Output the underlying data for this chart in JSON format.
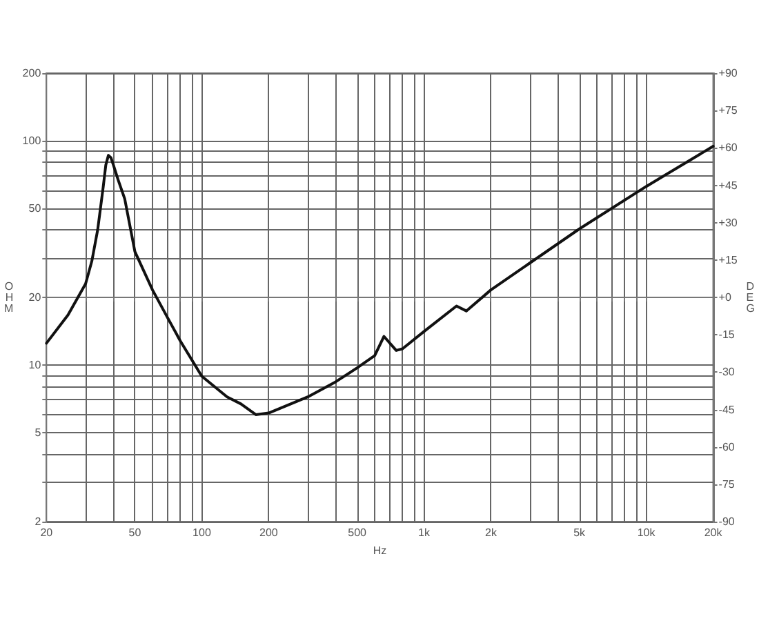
{
  "chart_data": {
    "type": "line",
    "xlabel": "Hz",
    "ylabel": "OHM",
    "y2label": "DEG",
    "log": "xy",
    "grid": true,
    "marker": "none",
    "line_style": "solid",
    "x": [
      20,
      25,
      30,
      32,
      34,
      36,
      37,
      38,
      39,
      40,
      42,
      45,
      50,
      60,
      70,
      80,
      100,
      130,
      150,
      175,
      200,
      300,
      400,
      500,
      600,
      660,
      750,
      800,
      1000,
      1400,
      1550,
      2000,
      5000,
      10000,
      20000
    ],
    "series": [
      {
        "color": "#111111",
        "values": [
          12.5,
          16.7,
          23,
          29,
          40,
          62,
          78,
          86,
          84,
          78,
          67,
          55,
          32,
          21.6,
          16.3,
          12.8,
          8.9,
          7.2,
          6.7,
          6.0,
          6.1,
          7.2,
          8.4,
          9.7,
          11,
          13.4,
          11.6,
          11.8,
          14.1,
          18.3,
          17.4,
          21.6,
          40.4,
          62.5,
          94.4
        ]
      }
    ],
    "xlim": [
      20,
      20000
    ],
    "xticks": [
      20,
      {
        "value": 30,
        "label": null
      },
      {
        "value": 40,
        "label": null
      },
      50,
      {
        "value": 60,
        "label": null
      },
      {
        "value": 70,
        "label": null
      },
      {
        "value": 80,
        "label": null
      },
      {
        "value": 90,
        "label": null
      },
      100,
      200,
      {
        "value": 300,
        "label": null
      },
      {
        "value": 400,
        "label": null
      },
      500,
      {
        "value": 600,
        "label": null
      },
      {
        "value": 700,
        "label": null
      },
      {
        "value": 800,
        "label": null
      },
      {
        "value": 900,
        "label": null
      },
      {
        "value": 1000,
        "label": "1k"
      },
      {
        "value": 2000,
        "label": "2k"
      },
      {
        "value": 3000,
        "label": null
      },
      {
        "value": 4000,
        "label": null
      },
      {
        "value": 5000,
        "label": "5k"
      },
      {
        "value": 6000,
        "label": null
      },
      {
        "value": 7000,
        "label": null
      },
      {
        "value": 8000,
        "label": null
      },
      {
        "value": 9000,
        "label": null
      },
      {
        "value": 10000,
        "label": "10k"
      },
      {
        "value": 20000,
        "label": "20k"
      }
    ],
    "ylim": [
      2,
      200
    ],
    "yticks": [
      2,
      {
        "value": 3,
        "label": null
      },
      {
        "value": 4,
        "label": null
      },
      5,
      {
        "value": 6,
        "label": null
      },
      {
        "value": 7,
        "label": null
      },
      {
        "value": 8,
        "label": null
      },
      {
        "value": 9,
        "label": null
      },
      10,
      20,
      {
        "value": 30,
        "label": null
      },
      {
        "value": 40,
        "label": null
      },
      50,
      {
        "value": 60,
        "label": null
      },
      {
        "value": 70,
        "label": null
      },
      {
        "value": 80,
        "label": null
      },
      {
        "value": 90,
        "label": null
      },
      100,
      200
    ],
    "y2lim": [
      -90,
      90
    ],
    "y2ticks": [
      {
        "value": -90,
        "label": "-90"
      },
      -75,
      -60,
      -45,
      -30,
      -15,
      {
        "value": 0,
        "label": "+0"
      },
      {
        "value": 15,
        "label": "+15"
      },
      {
        "value": 30,
        "label": "+30"
      },
      {
        "value": 45,
        "label": "+45"
      },
      {
        "value": 60,
        "label": "+60"
      },
      {
        "value": 75,
        "label": "+75"
      },
      {
        "value": 90,
        "label": "+90"
      }
    ]
  }
}
